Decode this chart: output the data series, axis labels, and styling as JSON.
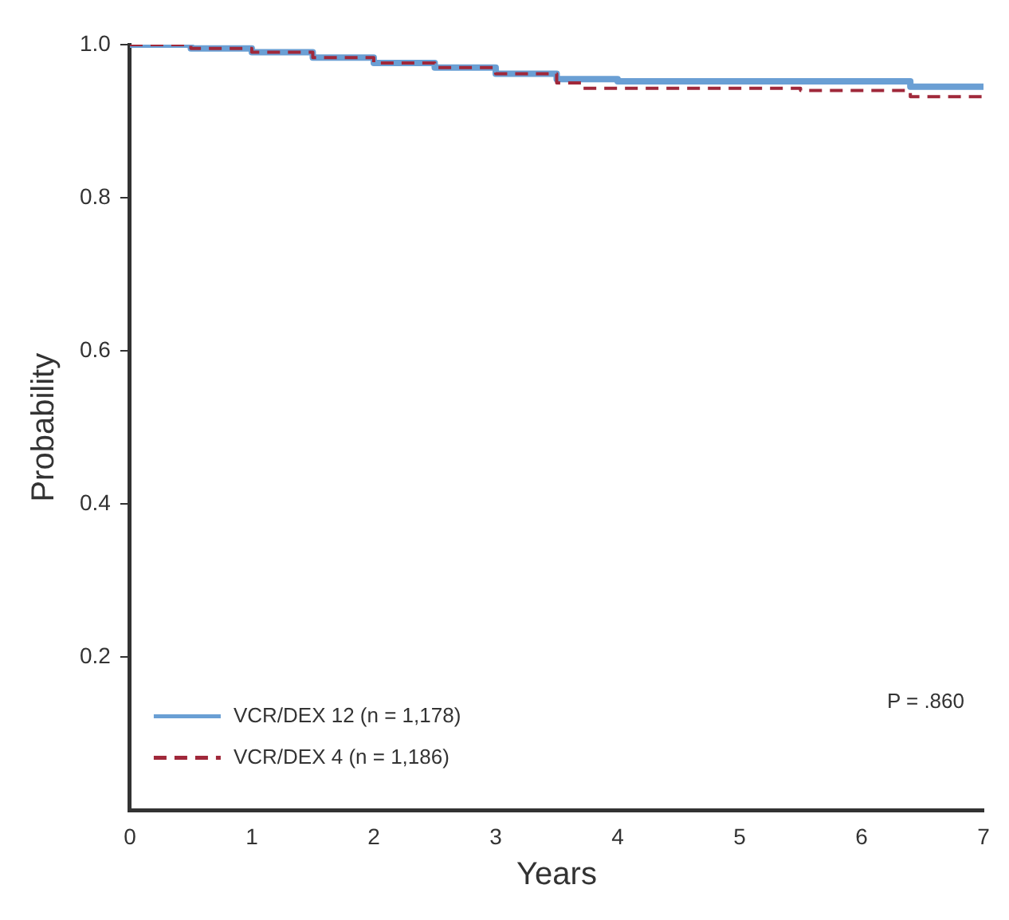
{
  "chart_data": {
    "type": "step",
    "xlabel": "Years",
    "ylabel": "Probability",
    "xlim": [
      0,
      7
    ],
    "xticks": [
      0,
      1,
      2,
      3,
      4,
      5,
      6,
      7
    ],
    "ylim": [
      0,
      1
    ],
    "yticks": [
      0.2,
      0.4,
      0.6,
      0.8,
      {
        "value": 1,
        "label": "1.0"
      }
    ],
    "grid": false,
    "legend": "bottom left",
    "marker": "none",
    "annotations": [
      "P = .860"
    ],
    "series": [
      {
        "name": "VCR/DEX 12 (n = 1,178)",
        "color": "#6a9fd4",
        "line_style": "solid",
        "x": [
          0,
          0.5,
          1,
          1.5,
          2,
          2.5,
          3,
          3.5,
          4,
          5,
          6.4,
          7
        ],
        "values": [
          1.0,
          0.995,
          0.99,
          0.983,
          0.976,
          0.97,
          0.962,
          0.955,
          0.952,
          0.952,
          0.945,
          0.945
        ]
      },
      {
        "name": "VCR/DEX 4 (n = 1,186)",
        "color": "#a0283a",
        "line_style": "dashed",
        "x": [
          0,
          0.5,
          1,
          1.5,
          2,
          2.5,
          3,
          3.5,
          3.7,
          5.5,
          6.4,
          7
        ],
        "values": [
          1.0,
          0.995,
          0.99,
          0.983,
          0.976,
          0.97,
          0.962,
          0.95,
          0.943,
          0.94,
          0.932,
          0.93
        ]
      }
    ]
  }
}
